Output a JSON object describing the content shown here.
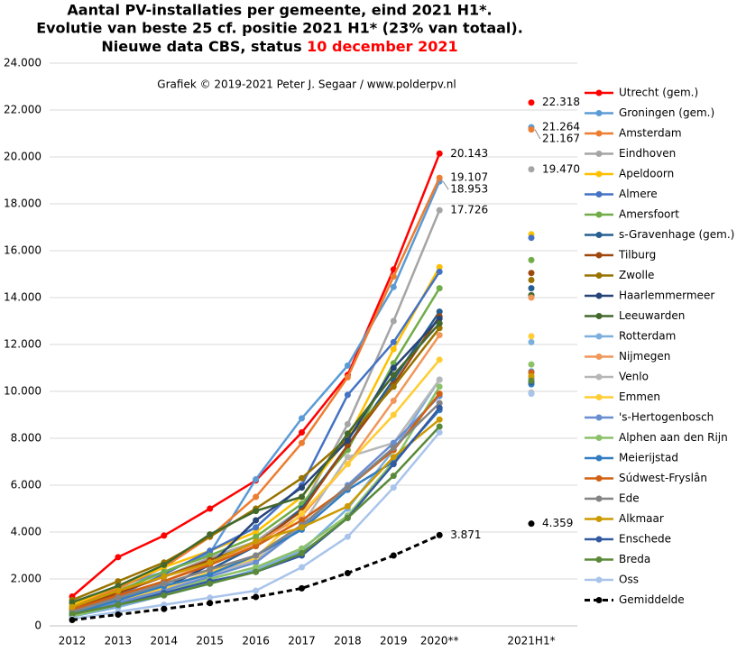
{
  "chart_data": {
    "type": "line",
    "title": [
      "Aantal PV-installaties  per gemeente, eind 2021 H1*.",
      "Evolutie  van beste 25 cf. positie  2021 H1* (23% van totaal)."
    ],
    "subtitle": "Nieuwe data CBS, status",
    "status_date": "10 december 2021",
    "annotation": "Grafiek  © 2019-2021 Peter J. Segaar / www.polderpv.nl",
    "categories": [
      "2012",
      "2013",
      "2014",
      "2015",
      "2016",
      "2017",
      "2018",
      "2019",
      "2020**",
      null,
      "2021H1*"
    ],
    "ylim": [
      0,
      24000
    ],
    "yticks": [
      0,
      {
        "value": 2000,
        "label": "2.000"
      },
      {
        "value": 4000,
        "label": "4.000"
      },
      {
        "value": 6000,
        "label": "6.000"
      },
      {
        "value": 8000,
        "label": "8.000"
      },
      {
        "value": 10000,
        "label": "10.000"
      },
      {
        "value": 12000,
        "label": "12.000"
      },
      {
        "value": 14000,
        "label": "14.000"
      },
      {
        "value": 16000,
        "label": "16.000"
      },
      {
        "value": 18000,
        "label": "18.000"
      },
      {
        "value": 20000,
        "label": "20.000"
      },
      {
        "value": 22000,
        "label": "22.000"
      },
      {
        "value": 24000,
        "label": "24.000"
      }
    ],
    "grid": true,
    "legend": "right",
    "series": [
      {
        "name": "Utrecht (gem.)",
        "color": "#ff0000",
        "values": [
          1250,
          2930,
          3850,
          5000,
          6200,
          8250,
          10700,
          15200,
          20143,
          null,
          22318
        ],
        "value_labels": [
          null,
          null,
          null,
          null,
          null,
          null,
          null,
          null,
          "20.143",
          null,
          "22.318"
        ]
      },
      {
        "name": "Groningen (gem.)",
        "color": "#5b9bd5",
        "values": [
          1000,
          1700,
          2300,
          3100,
          6250,
          8850,
          11100,
          14450,
          18953,
          null,
          21264
        ],
        "value_labels": [
          null,
          null,
          null,
          null,
          null,
          null,
          null,
          null,
          "18.953",
          null,
          "21.264"
        ]
      },
      {
        "name": "Amsterdam",
        "color": "#ed7d31",
        "values": [
          800,
          1600,
          2500,
          3800,
          5500,
          7800,
          10600,
          14900,
          19107,
          null,
          21167
        ],
        "value_labels": [
          null,
          null,
          null,
          null,
          null,
          null,
          null,
          null,
          "19.107",
          null,
          "21.167"
        ]
      },
      {
        "name": "Eindhoven",
        "color": "#a5a5a5",
        "values": [
          700,
          1400,
          2100,
          2900,
          3600,
          5000,
          8600,
          13000,
          17726,
          null,
          19470
        ],
        "value_labels": [
          null,
          null,
          null,
          null,
          null,
          null,
          null,
          null,
          "17.726",
          null,
          "19.470"
        ]
      },
      {
        "name": "Apeldoorn",
        "color": "#ffc000",
        "values": [
          900,
          1700,
          2500,
          3200,
          4000,
          5500,
          8000,
          11800,
          15300,
          null,
          16700
        ]
      },
      {
        "name": "Almere",
        "color": "#4472c4",
        "values": [
          600,
          1300,
          2200,
          3200,
          4200,
          6000,
          9850,
          12100,
          15100,
          null,
          16550
        ]
      },
      {
        "name": "Amersfoort",
        "color": "#70ad47",
        "values": [
          800,
          1500,
          2300,
          3000,
          3800,
          5200,
          7500,
          11200,
          14400,
          null,
          15600
        ]
      },
      {
        "name": "s-Gravenhage (gem.)",
        "color": "#255e91",
        "values": [
          600,
          1200,
          1800,
          2400,
          3400,
          5000,
          7700,
          10500,
          13400,
          null,
          14400
        ]
      },
      {
        "name": "Tilburg",
        "color": "#9e480e",
        "values": [
          700,
          1400,
          2100,
          2800,
          3500,
          4900,
          7700,
          10300,
          13200,
          null,
          15050
        ]
      },
      {
        "name": "Zwolle",
        "color": "#997300",
        "values": [
          1100,
          1900,
          2700,
          3800,
          5000,
          6300,
          8000,
          10200,
          12700,
          null,
          14750
        ]
      },
      {
        "name": "Haarlemmermeer",
        "color": "#264478",
        "values": [
          500,
          1000,
          1600,
          2600,
          4500,
          5900,
          7900,
          11000,
          13100,
          null,
          14100
        ]
      },
      {
        "name": "Leeuwarden",
        "color": "#43682b",
        "values": [
          1000,
          1700,
          2600,
          3900,
          4900,
          5500,
          8200,
          10700,
          12900,
          null,
          14100
        ]
      },
      {
        "name": "Rotterdam",
        "color": "#7cafdd",
        "values": [
          400,
          800,
          1300,
          1800,
          2400,
          3200,
          5000,
          7500,
          10500,
          null,
          12100
        ]
      },
      {
        "name": "Nijmegen",
        "color": "#f1975a",
        "values": [
          600,
          1200,
          1900,
          2700,
          3500,
          4700,
          6900,
          9600,
          12400,
          null,
          14000
        ]
      },
      {
        "name": "Venlo",
        "color": "#b7b7b7",
        "values": [
          500,
          1100,
          1600,
          2200,
          2800,
          4300,
          7200,
          7800,
          10500,
          null,
          9950
        ]
      },
      {
        "name": "Emmen",
        "color": "#ffcd33",
        "values": [
          600,
          1100,
          1600,
          2300,
          2900,
          4800,
          6900,
          9000,
          11350,
          null,
          12350
        ]
      },
      {
        "name": "'s-Hertogenbosch",
        "color": "#698ed0",
        "values": [
          500,
          1000,
          1500,
          2100,
          2700,
          4200,
          6000,
          7800,
          9800,
          null,
          10850
        ]
      },
      {
        "name": "Alphen aan den Rijn",
        "color": "#8cc168",
        "values": [
          400,
          900,
          1400,
          2000,
          2500,
          3300,
          4700,
          7000,
          10200,
          null,
          11150
        ]
      },
      {
        "name": "Meierijstad",
        "color": "#327dc2",
        "values": [
          500,
          1100,
          1700,
          2200,
          3000,
          4100,
          5800,
          7000,
          9200,
          null,
          10300
        ]
      },
      {
        "name": "Súdwest-Fryslân",
        "color": "#d26012",
        "values": [
          700,
          1300,
          1900,
          2600,
          3400,
          4500,
          5900,
          7500,
          9900,
          null,
          10800
        ]
      },
      {
        "name": "Ede",
        "color": "#848484",
        "values": [
          600,
          1200,
          1800,
          2400,
          3000,
          4300,
          5900,
          7600,
          9500,
          null,
          10550
        ]
      },
      {
        "name": "Alkmaar",
        "color": "#cc9a00",
        "values": [
          800,
          1500,
          2100,
          2700,
          3600,
          4200,
          5100,
          7200,
          8800,
          null,
          10650
        ]
      },
      {
        "name": "Enschede",
        "color": "#335aa1",
        "values": [
          500,
          900,
          1400,
          1900,
          2300,
          3000,
          4600,
          6900,
          9300,
          null,
          10400
        ]
      },
      {
        "name": "Breda",
        "color": "#5a8a39",
        "values": [
          500,
          900,
          1300,
          1800,
          2300,
          3100,
          4600,
          6400,
          8500,
          null,
          10450
        ]
      },
      {
        "name": "Oss",
        "color": "#a9c4eb",
        "values": [
          300,
          600,
          900,
          1200,
          1500,
          2500,
          3800,
          5900,
          8250,
          null,
          9900
        ]
      },
      {
        "name": "Gemiddelde",
        "color": "#000000",
        "dashed": true,
        "values": [
          250,
          480,
          720,
          970,
          1230,
          1600,
          2250,
          3000,
          3871,
          null,
          4359
        ],
        "value_labels": [
          null,
          null,
          null,
          null,
          null,
          null,
          null,
          null,
          "3.871",
          null,
          "4.359"
        ]
      }
    ]
  }
}
